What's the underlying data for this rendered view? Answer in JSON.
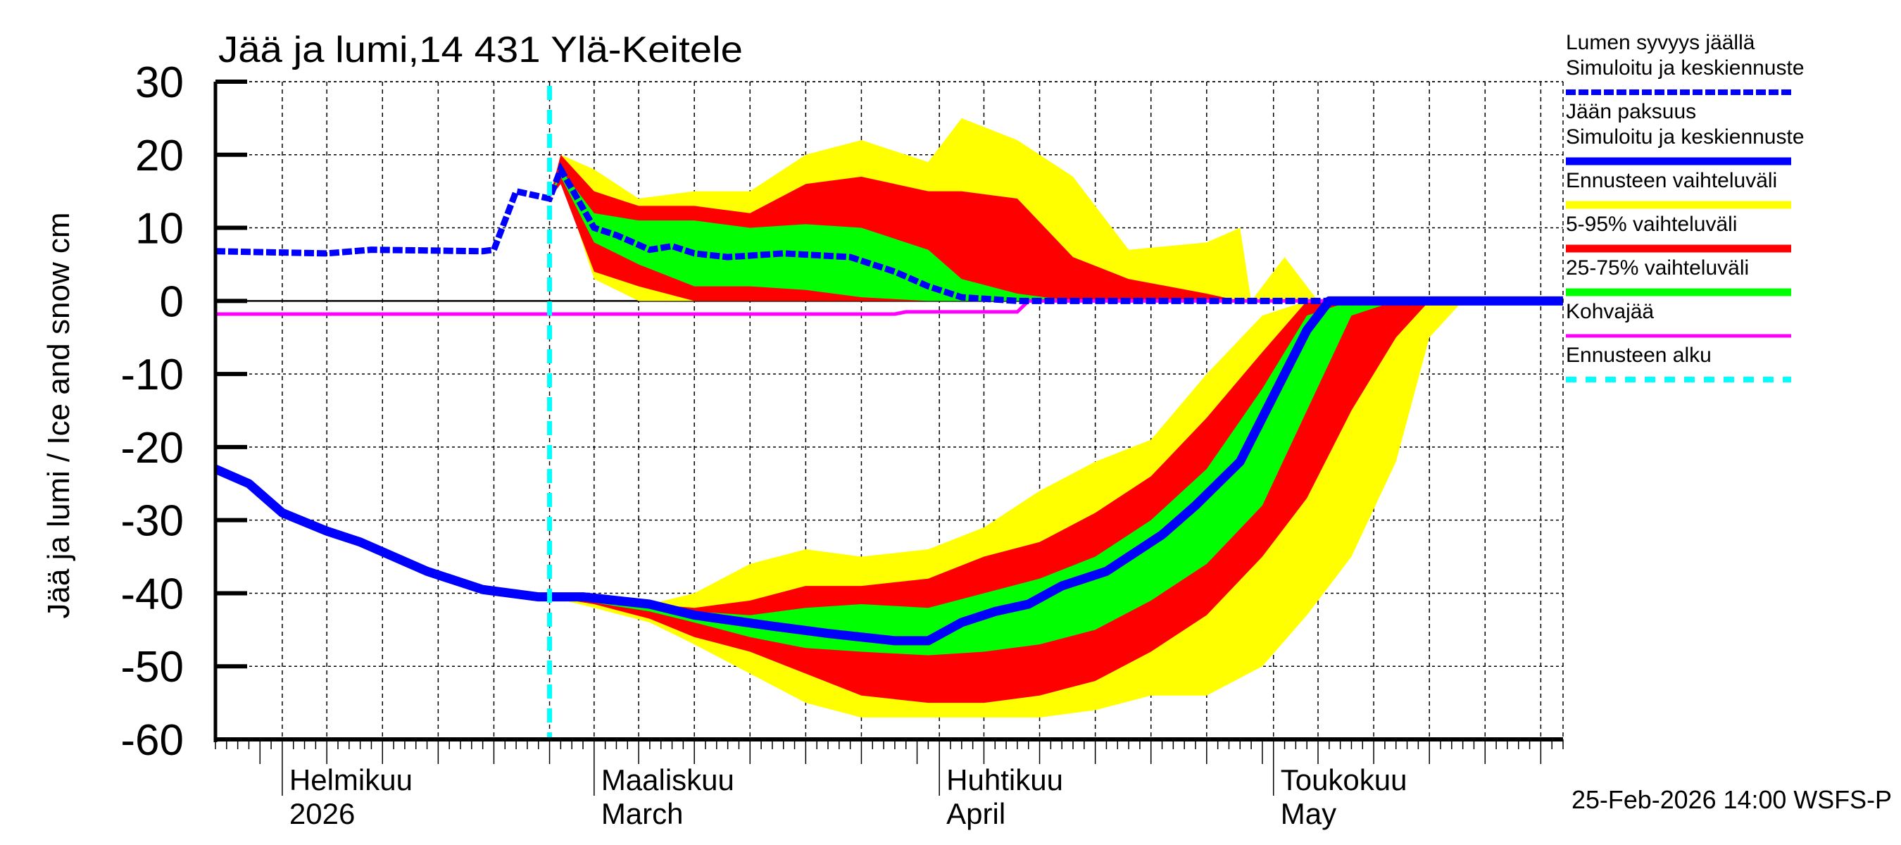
{
  "chart_data": {
    "type": "area",
    "title": "Jää ja lumi,14 431 Ylä-Keitele",
    "ylabel": "Jää ja lumi / Ice and snow    cm",
    "ylim": [
      -60,
      30
    ],
    "yticks": [
      30,
      20,
      10,
      0,
      -10,
      -20,
      -30,
      -40,
      -50,
      -60
    ],
    "xlim": [
      "2026-01-26",
      "2026-05-27"
    ],
    "grid": true,
    "legend_position": "right",
    "month_labels": [
      {
        "date": "2026-02-01",
        "fi": "Helmikuu",
        "en": "2026"
      },
      {
        "date": "2026-03-01",
        "fi": "Maaliskuu",
        "en": "March"
      },
      {
        "date": "2026-04-01",
        "fi": "Huhtikuu",
        "en": "April"
      },
      {
        "date": "2026-05-01",
        "fi": "Toukokuu",
        "en": "May"
      }
    ],
    "forecast_start": "2026-02-25",
    "timestamp": "25-Feb-2026 14:00 WSFS-P",
    "colors": {
      "snow": "#0000ff",
      "ice": "#0000ff",
      "range": "#ffff00",
      "p5_95": "#ff0000",
      "p25_75": "#00ff00",
      "slush": "#ff00ff",
      "forecast_start": "#00ffff"
    },
    "legend": [
      {
        "label1": "Lumen syvyys jäällä",
        "label2": "Simuloitu ja keskiennuste",
        "style": "dashed-thick",
        "color": "#0000ff"
      },
      {
        "label1": "Jään paksuus",
        "label2": "Simuloitu ja keskiennuste",
        "style": "solid-thick",
        "color": "#0000ff"
      },
      {
        "label1": "Ennusteen vaihteluväli",
        "style": "band",
        "color": "#ffff00"
      },
      {
        "label1": "5-95% vaihteluväli",
        "style": "band",
        "color": "#ff0000"
      },
      {
        "label1": "25-75% vaihteluväli",
        "style": "band",
        "color": "#00ff00"
      },
      {
        "label1": "Kohvajää",
        "style": "solid-thin",
        "color": "#ff00ff"
      },
      {
        "label1": "Ennusteen alku",
        "style": "dashed-cyan",
        "color": "#00ffff"
      }
    ],
    "snow_depth": {
      "dates": [
        "2026-01-26",
        "2026-02-05",
        "2026-02-09",
        "2026-02-19",
        "2026-02-20",
        "2026-02-22",
        "2026-02-25",
        "2026-02-26",
        "2026-03-01",
        "2026-03-03",
        "2026-03-06",
        "2026-03-08",
        "2026-03-10",
        "2026-03-13",
        "2026-03-18",
        "2026-03-24",
        "2026-03-28",
        "2026-03-31",
        "2026-04-03",
        "2026-04-08",
        "2026-05-27"
      ],
      "values": [
        6.8,
        6.5,
        7,
        6.8,
        7,
        15,
        14,
        18,
        10,
        9,
        7,
        7.5,
        6.5,
        6,
        6.5,
        6,
        4,
        2,
        0.5,
        0,
        0
      ]
    },
    "ice_thickness": {
      "dates": [
        "2026-01-26",
        "2026-01-29",
        "2026-02-01",
        "2026-02-05",
        "2026-02-08",
        "2026-02-11",
        "2026-02-14",
        "2026-02-19",
        "2026-02-24",
        "2026-02-28",
        "2026-03-06",
        "2026-03-10",
        "2026-03-17",
        "2026-03-22",
        "2026-03-28",
        "2026-03-31",
        "2026-04-03",
        "2026-04-06",
        "2026-04-09",
        "2026-04-12",
        "2026-04-16",
        "2026-04-19",
        "2026-04-21",
        "2026-04-24",
        "2026-04-28",
        "2026-04-30",
        "2026-05-02",
        "2026-05-04",
        "2026-05-06",
        "2026-05-27"
      ],
      "values": [
        -23,
        -25,
        -29,
        -31.5,
        -33,
        -35,
        -37,
        -39.5,
        -40.5,
        -40.5,
        -41.5,
        -43,
        -44.5,
        -45.5,
        -46.5,
        -46.5,
        -44,
        -42.5,
        -41.5,
        -39,
        -37,
        -34,
        -32,
        -28,
        -22,
        -16,
        -10,
        -4,
        0,
        0
      ]
    },
    "slush_ice": {
      "dates": [
        "2026-01-26",
        "2026-03-28",
        "2026-03-29",
        "2026-04-08",
        "2026-04-09",
        "2026-05-27"
      ],
      "values": [
        -1.8,
        -1.8,
        -1.5,
        -1.5,
        0,
        0
      ]
    },
    "ice_bands": {
      "dates": [
        "2026-02-25",
        "2026-03-01",
        "2026-03-06",
        "2026-03-10",
        "2026-03-15",
        "2026-03-20",
        "2026-03-25",
        "2026-03-31",
        "2026-04-05",
        "2026-04-10",
        "2026-04-15",
        "2026-04-20",
        "2026-04-25",
        "2026-04-30",
        "2026-05-04",
        "2026-05-08",
        "2026-05-12",
        "2026-05-15",
        "2026-05-18"
      ],
      "range": [
        [
          -40.5,
          -40.5
        ],
        [
          -42,
          -41
        ],
        [
          -44,
          -41.5
        ],
        [
          -47,
          -40
        ],
        [
          -51,
          -36
        ],
        [
          -55,
          -34
        ],
        [
          -57,
          -35
        ],
        [
          -57,
          -34
        ],
        [
          -57,
          -31
        ],
        [
          -57,
          -26
        ],
        [
          -56,
          -22
        ],
        [
          -54,
          -19
        ],
        [
          -54,
          -10
        ],
        [
          -50,
          -2
        ],
        [
          -43,
          0
        ],
        [
          -35,
          0
        ],
        [
          -22,
          0
        ],
        [
          -5,
          0
        ],
        [
          0,
          0
        ]
      ],
      "p5_95": [
        [
          -40.5,
          -40.5
        ],
        [
          -41.5,
          -41
        ],
        [
          -43.5,
          -41.5
        ],
        [
          -46,
          -42
        ],
        [
          -48,
          -41
        ],
        [
          -51,
          -39
        ],
        [
          -54,
          -39
        ],
        [
          -55,
          -38
        ],
        [
          -55,
          -35
        ],
        [
          -54,
          -33
        ],
        [
          -52,
          -29
        ],
        [
          -48,
          -24
        ],
        [
          -43,
          -16
        ],
        [
          -35,
          -7
        ],
        [
          -27,
          0
        ],
        [
          -15,
          0
        ],
        [
          -5,
          0
        ],
        [
          0,
          0
        ],
        [
          0,
          0
        ]
      ],
      "p25_75": [
        [
          -40.5,
          -40.5
        ],
        [
          -41.3,
          -41.1
        ],
        [
          -42.5,
          -41.8
        ],
        [
          -44,
          -42.5
        ],
        [
          -46,
          -43
        ],
        [
          -47.5,
          -42
        ],
        [
          -48,
          -41.5
        ],
        [
          -48.5,
          -42
        ],
        [
          -48,
          -40
        ],
        [
          -47,
          -38
        ],
        [
          -45,
          -35
        ],
        [
          -41,
          -30
        ],
        [
          -36,
          -23
        ],
        [
          -28,
          -12
        ],
        [
          -15,
          -2
        ],
        [
          -2,
          0
        ],
        [
          0,
          0
        ],
        [
          0,
          0
        ],
        [
          0,
          0
        ]
      ]
    },
    "snow_bands": {
      "dates": [
        "2026-02-25",
        "2026-02-26",
        "2026-03-01",
        "2026-03-05",
        "2026-03-10",
        "2026-03-15",
        "2026-03-20",
        "2026-03-25",
        "2026-03-31",
        "2026-04-03",
        "2026-04-08",
        "2026-04-13",
        "2026-04-18",
        "2026-04-25",
        "2026-04-28",
        "2026-04-29",
        "2026-05-02",
        "2026-05-05"
      ],
      "range": [
        [
          14,
          14
        ],
        [
          17,
          20
        ],
        [
          3,
          18
        ],
        [
          0,
          14
        ],
        [
          0,
          15
        ],
        [
          0,
          15
        ],
        [
          0,
          20
        ],
        [
          0,
          22
        ],
        [
          0,
          19
        ],
        [
          0,
          25
        ],
        [
          0,
          22
        ],
        [
          0,
          17
        ],
        [
          0,
          7
        ],
        [
          0,
          8
        ],
        [
          0,
          10
        ],
        [
          0,
          0
        ],
        [
          0,
          6
        ],
        [
          0,
          0
        ]
      ],
      "p5_95": [
        [
          14,
          14
        ],
        [
          16,
          20
        ],
        [
          4,
          15
        ],
        [
          2,
          13
        ],
        [
          0,
          13
        ],
        [
          0,
          12
        ],
        [
          0,
          16
        ],
        [
          0,
          17
        ],
        [
          0,
          15
        ],
        [
          0,
          15
        ],
        [
          0,
          14
        ],
        [
          0,
          6
        ],
        [
          0,
          3
        ],
        [
          0,
          1
        ],
        [
          0,
          0
        ],
        [
          0,
          0
        ],
        [
          0,
          0
        ],
        [
          0,
          0
        ]
      ],
      "p25_75": [
        [
          14,
          14
        ],
        [
          17,
          18
        ],
        [
          8,
          12
        ],
        [
          5,
          11
        ],
        [
          2,
          11
        ],
        [
          2,
          10
        ],
        [
          1.5,
          10.5
        ],
        [
          0.5,
          10
        ],
        [
          0,
          7
        ],
        [
          0,
          3
        ],
        [
          0,
          1
        ],
        [
          0,
          0
        ],
        [
          0,
          0
        ],
        [
          0,
          0
        ],
        [
          0,
          0
        ],
        [
          0,
          0
        ],
        [
          0,
          0
        ],
        [
          0,
          0
        ]
      ]
    }
  }
}
